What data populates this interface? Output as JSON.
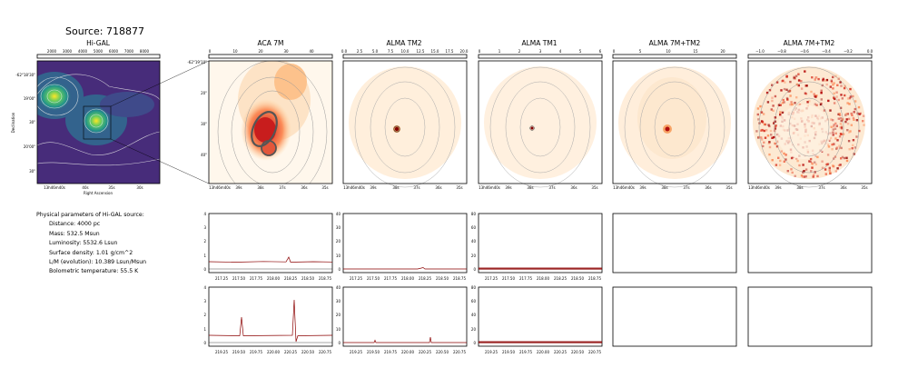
{
  "source_title": "Source: 718877",
  "params": {
    "heading": "Physical parameters of Hi-GAL source:",
    "lines": [
      "Distance: 4000 pc",
      "Mass: 532.5 Msun",
      "Luminosity: 5532.6 Lsun",
      "Surface density: 1.01 g/cm^2",
      "L/M (evolution): 10.389 Lsun/Msun",
      "Bolometric temperature: 55.5 K"
    ]
  },
  "higal": {
    "title": "Hi-GAL",
    "colorbar_ticks": [
      "2000",
      "3000",
      "4000",
      "5000",
      "6000",
      "7000",
      "8000"
    ],
    "yticks": [
      "-62°18'30\"",
      "19'00\"",
      "30\"",
      "20'00\"",
      "30\""
    ],
    "xticks": [
      "13h46m40s",
      "40s",
      "35s",
      "30s"
    ],
    "xlabel": "Right Ascension",
    "ylabel": "Declination"
  },
  "aca": {
    "title": "ACA 7M",
    "colorbar_ticks": [
      "0",
      "10",
      "20",
      "30",
      "40"
    ],
    "yticks": [
      "-62°19'10\"",
      "20\"",
      "30\"",
      "40\""
    ],
    "xticks": [
      "13h46m40s",
      "39s",
      "38s",
      "37s",
      "36s",
      "35s"
    ]
  },
  "tm2": {
    "title": "ALMA TM2",
    "colorbar_ticks": [
      "0.0",
      "2.5",
      "5.0",
      "7.5",
      "10.0",
      "12.5",
      "15.0",
      "17.5",
      "20.0"
    ],
    "xticks": [
      "13h46m40s",
      "39s",
      "38s",
      "37s",
      "36s",
      "35s"
    ]
  },
  "tm1": {
    "title": "ALMA TM1",
    "colorbar_ticks": [
      "0",
      "1",
      "2",
      "3",
      "4",
      "5",
      "6"
    ],
    "xticks": [
      "13h46m40s",
      "39s",
      "38s",
      "37s",
      "36s",
      "35s"
    ]
  },
  "combo": {
    "title": "ALMA 7M+TM2",
    "colorbar_ticks": [
      "0",
      "5",
      "10",
      "15",
      "20"
    ],
    "xticks": [
      "13h46m40s",
      "39s",
      "38s",
      "37s",
      "36s",
      "35s"
    ]
  },
  "combo2": {
    "title": "ALMA 7M+TM2",
    "colorbar_ticks": [
      "−1.0",
      "−0.8",
      "−0.6",
      "−0.4",
      "−0.2",
      "0.0"
    ],
    "xticks": [
      "13h46m40s",
      "39s",
      "38s",
      "37s",
      "36s",
      "35s"
    ]
  },
  "spectra": {
    "row1_xticks": [
      "217.25",
      "217.50",
      "217.75",
      "218.00",
      "218.25",
      "218.50",
      "218.75"
    ],
    "row2_xticks": [
      "219.25",
      "219.50",
      "219.75",
      "220.00",
      "220.25",
      "220.50",
      "220.75"
    ],
    "yticks_aca": [
      "0",
      "1",
      "2",
      "3",
      "4"
    ],
    "yticks_tm2": [
      "0",
      "10",
      "20",
      "30",
      "40"
    ],
    "yticks_tm1": [
      "0",
      "20",
      "40",
      "60",
      "80"
    ]
  }
}
